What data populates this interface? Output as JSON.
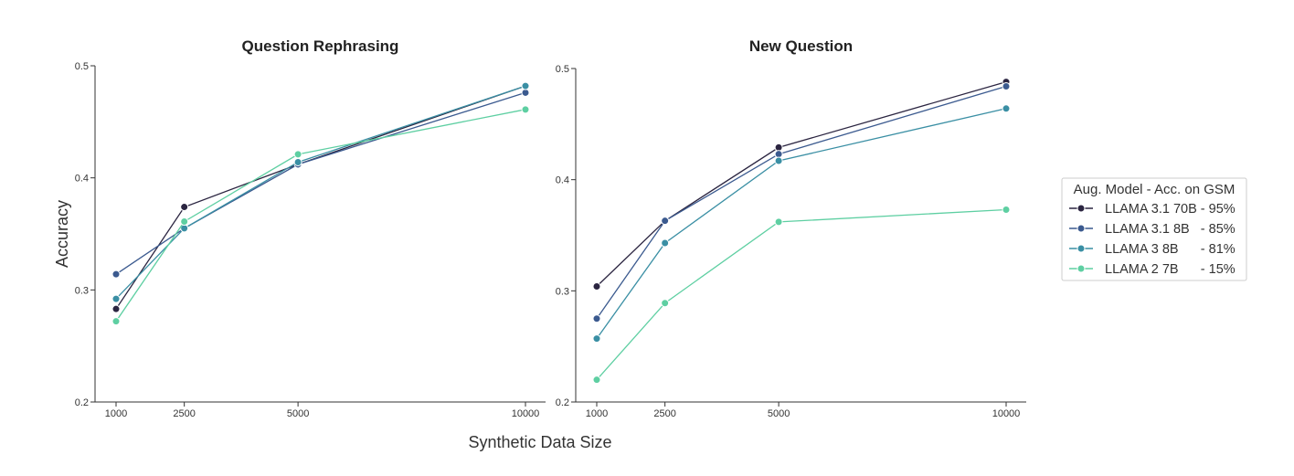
{
  "figure": {
    "ylabel": "Accuracy",
    "xlabel": "Synthetic Data Size"
  },
  "legend": {
    "title": "Aug. Model - Acc. on GSM",
    "placement": "right"
  },
  "chart_data": [
    {
      "type": "line",
      "title": "Question Rephrasing",
      "xlabel": "Synthetic Data Size",
      "ylabel": "Accuracy",
      "x": [
        1000,
        2500,
        5000,
        10000
      ],
      "xticks": [
        "1000",
        "2500",
        "5000",
        "10000"
      ],
      "ylim": [
        0.2,
        0.5
      ],
      "yticks": [
        "0.2",
        "0.3",
        "0.4",
        "0.5"
      ],
      "grid": false,
      "series": [
        {
          "name": "LLAMA 3.1 70B - 95%",
          "color": "#2b2541",
          "values": [
            0.283,
            0.374,
            0.412,
            0.482
          ]
        },
        {
          "name": "LLAMA 3.1 8B   - 85%",
          "color": "#3b5a8f",
          "values": [
            0.314,
            0.355,
            0.412,
            0.476
          ]
        },
        {
          "name": "LLAMA 3 8B      - 81%",
          "color": "#3a8fa4",
          "values": [
            0.292,
            0.355,
            0.414,
            0.482
          ]
        },
        {
          "name": "LLAMA 2 7B      - 15%",
          "color": "#5ecfa2",
          "values": [
            0.272,
            0.361,
            0.421,
            0.461
          ]
        }
      ]
    },
    {
      "type": "line",
      "title": "New Question",
      "xlabel": "Synthetic Data Size",
      "ylabel": "Accuracy",
      "x": [
        1000,
        2500,
        5000,
        10000
      ],
      "xticks": [
        "1000",
        "2500",
        "5000",
        "10000"
      ],
      "ylim": [
        0.2,
        0.5
      ],
      "yticks": [
        "0.2",
        "0.3",
        "0.4",
        "0.5"
      ],
      "grid": false,
      "series": [
        {
          "name": "LLAMA 3.1 70B - 95%",
          "color": "#2b2541",
          "values": [
            0.304,
            0.363,
            0.429,
            0.488
          ]
        },
        {
          "name": "LLAMA 3.1 8B   - 85%",
          "color": "#3b5a8f",
          "values": [
            0.275,
            0.363,
            0.423,
            0.484
          ]
        },
        {
          "name": "LLAMA 3 8B      - 81%",
          "color": "#3a8fa4",
          "values": [
            0.257,
            0.343,
            0.417,
            0.464
          ]
        },
        {
          "name": "LLAMA 2 7B      - 15%",
          "color": "#5ecfa2",
          "values": [
            0.22,
            0.289,
            0.362,
            0.373
          ]
        }
      ]
    }
  ]
}
